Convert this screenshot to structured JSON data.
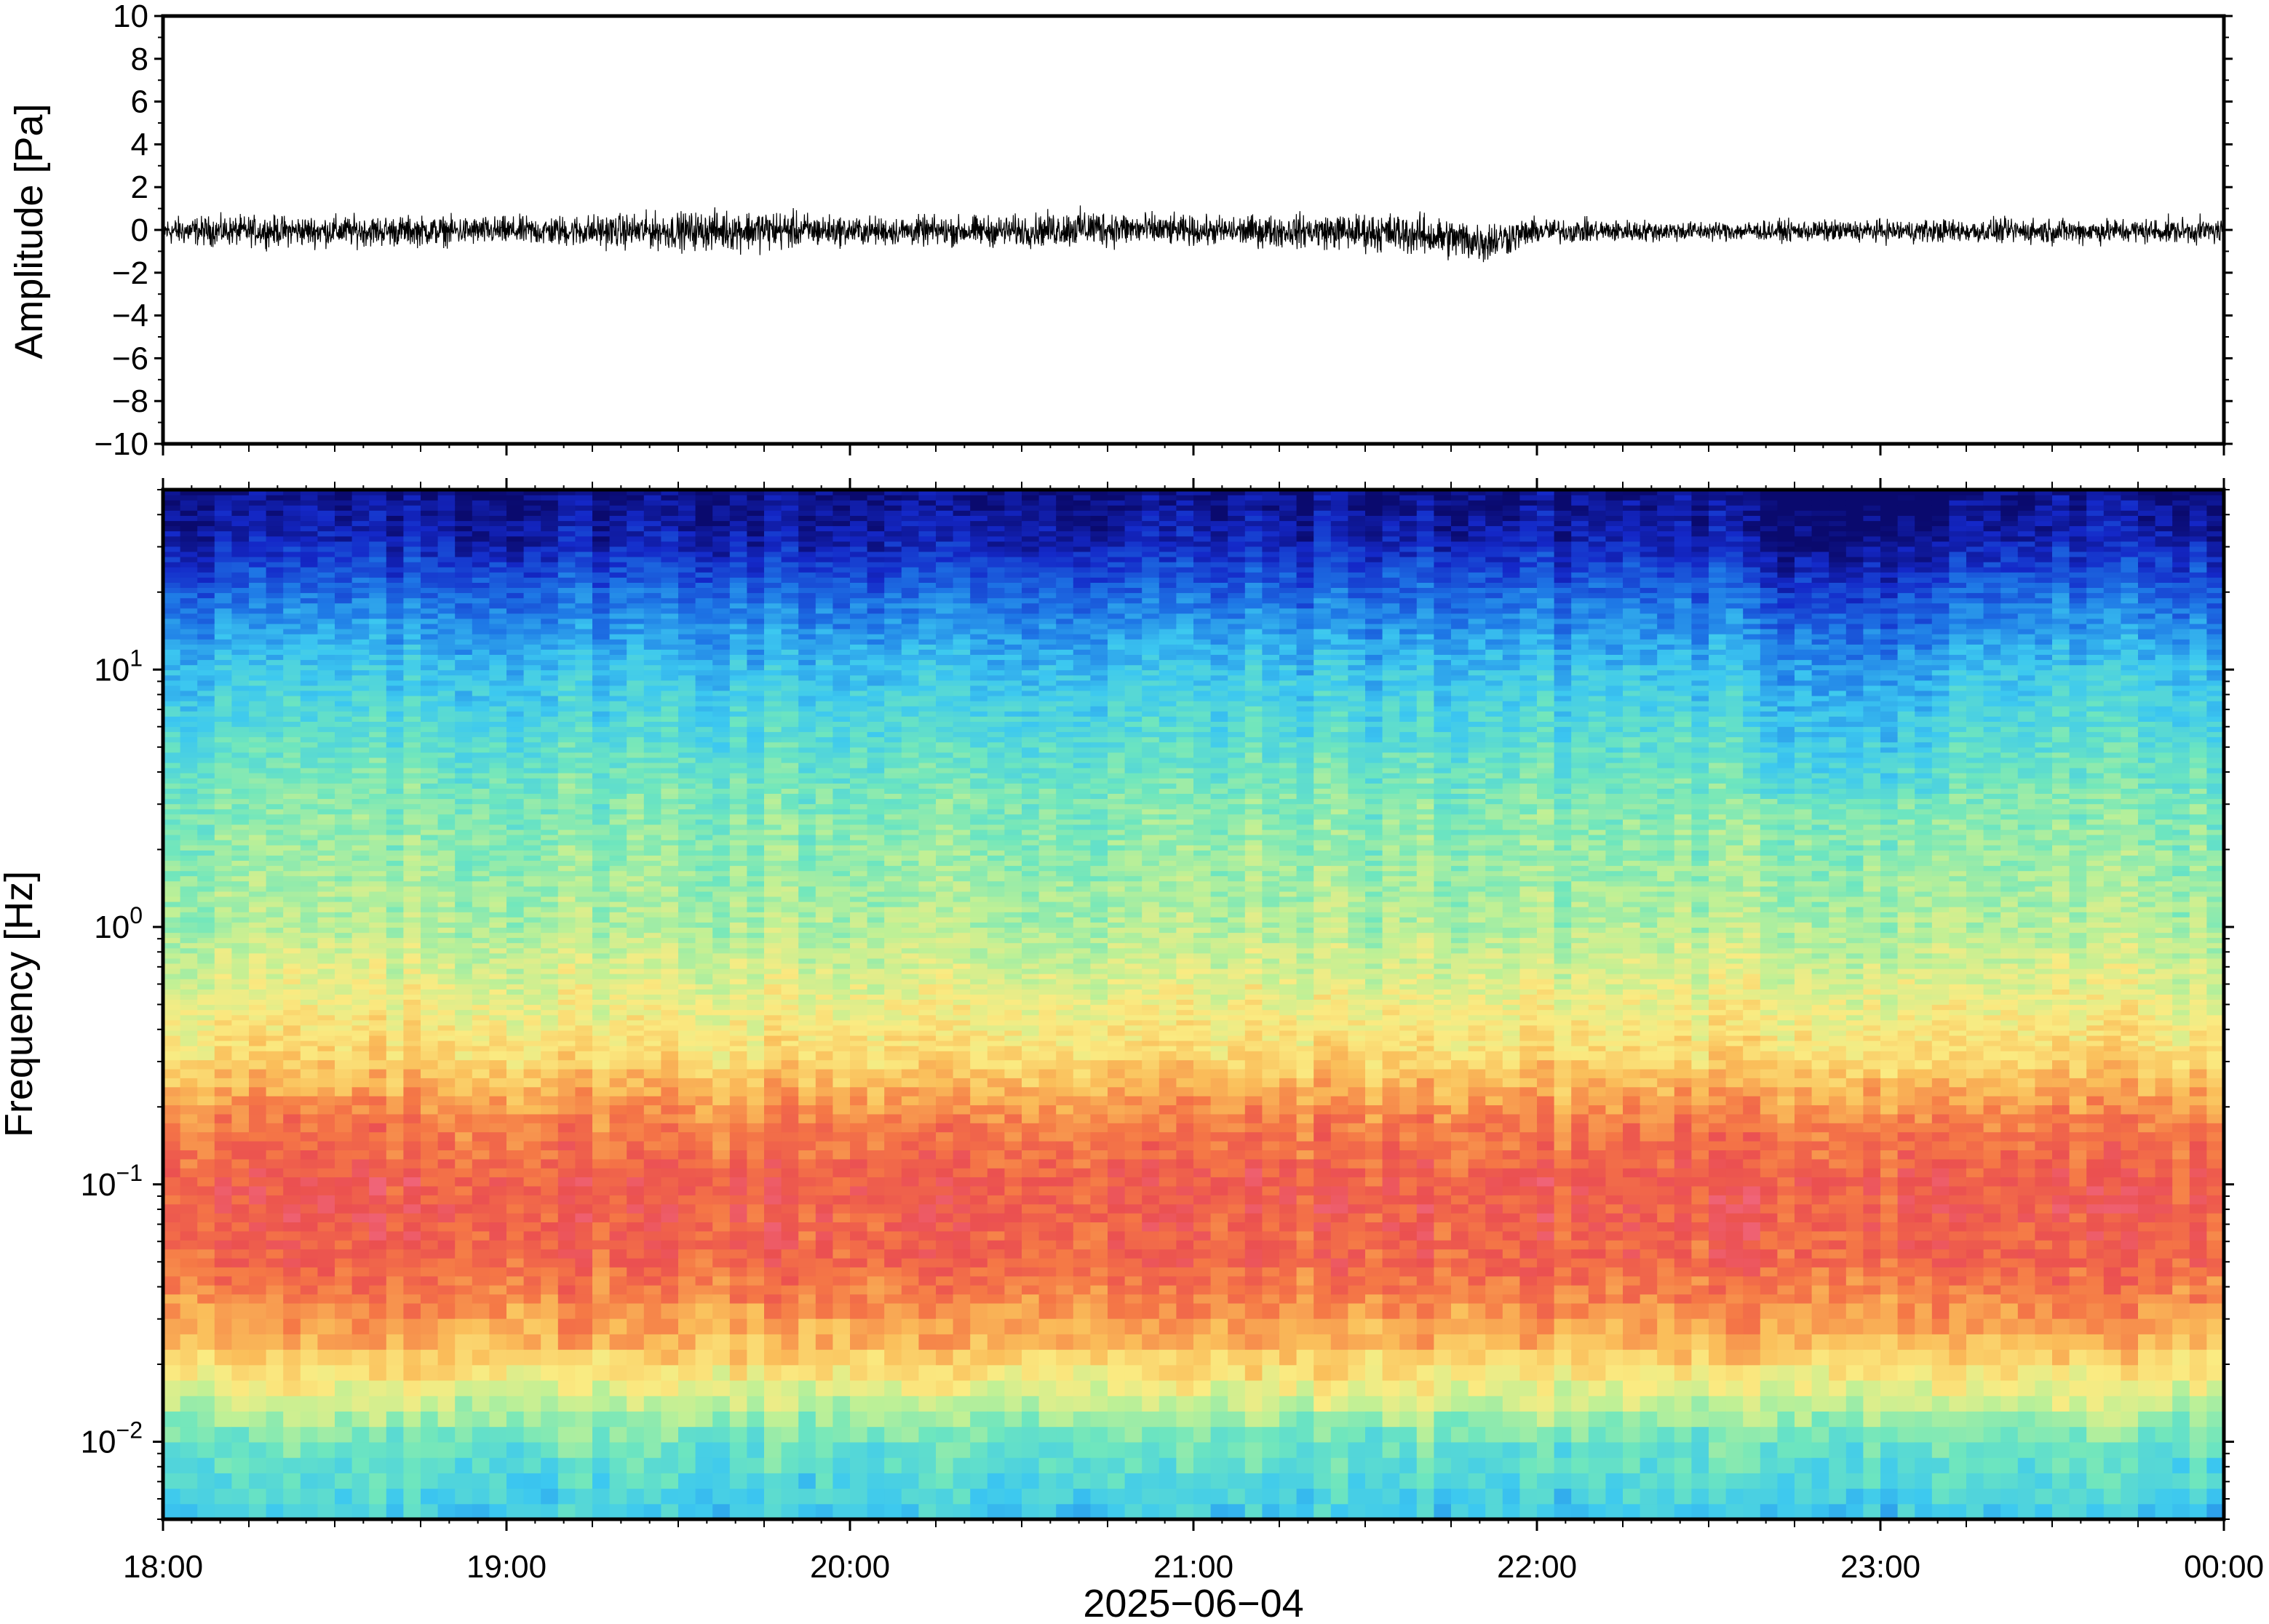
{
  "chart_data": [
    {
      "type": "line",
      "panel": "waveform",
      "ylabel": "Amplitude [Pa]",
      "ylim": [
        -10,
        10
      ],
      "yticks": [
        10,
        8,
        6,
        4,
        2,
        0,
        -2,
        -4,
        -6,
        -8,
        -10
      ],
      "ytick_labels": [
        "10",
        "8",
        "6",
        "4",
        "2",
        "0",
        "−2",
        "−4",
        "−6",
        "−8",
        "−10"
      ],
      "xlim": [
        "18:00",
        "00:00"
      ],
      "grid": false,
      "envelope": {
        "x_hours": [
          18.0,
          18.5,
          19.0,
          19.5,
          19.75,
          20.0,
          20.5,
          20.7,
          21.0,
          21.35,
          21.6,
          21.85,
          22.0,
          22.5,
          23.0,
          23.5,
          24.0
        ],
        "max": [
          0.9,
          1.0,
          0.9,
          1.2,
          1.4,
          0.9,
          1.0,
          1.4,
          0.9,
          1.1,
          1.2,
          0.9,
          0.8,
          0.6,
          0.7,
          0.8,
          0.8
        ],
        "min": [
          -1.0,
          -1.1,
          -1.0,
          -1.3,
          -1.4,
          -1.0,
          -1.1,
          -1.2,
          -1.0,
          -1.2,
          -1.5,
          -2.0,
          -0.9,
          -0.7,
          -0.8,
          -0.9,
          -0.9
        ]
      }
    },
    {
      "type": "heatmap",
      "panel": "spectrogram",
      "ylabel": "Frequency [Hz]",
      "xlabel": "2025−06−04",
      "yscale": "log",
      "ylim_hz": [
        0.005,
        50
      ],
      "yticks": [
        {
          "value": 0.01,
          "base": "10",
          "exp": "−2"
        },
        {
          "value": 0.1,
          "base": "10",
          "exp": "−1"
        },
        {
          "value": 1,
          "base": "10",
          "exp": "0"
        },
        {
          "value": 10,
          "base": "10",
          "exp": "1"
        }
      ],
      "xticks": [
        "18:00",
        "19:00",
        "20:00",
        "21:00",
        "22:00",
        "23:00",
        "00:00"
      ],
      "colormap": "rainbow (blue = low power, red = high power)",
      "power_profile": {
        "log10_freq": [
          -2.3,
          -2.0,
          -1.8,
          -1.6,
          -1.3,
          -1.0,
          -0.75,
          -0.5,
          0.0,
          0.5,
          1.0,
          1.3,
          1.5,
          1.7
        ],
        "relative_level": [
          0.35,
          0.45,
          0.62,
          0.78,
          0.9,
          0.92,
          0.85,
          0.7,
          0.55,
          0.48,
          0.34,
          0.2,
          0.08,
          0.02
        ]
      }
    }
  ]
}
